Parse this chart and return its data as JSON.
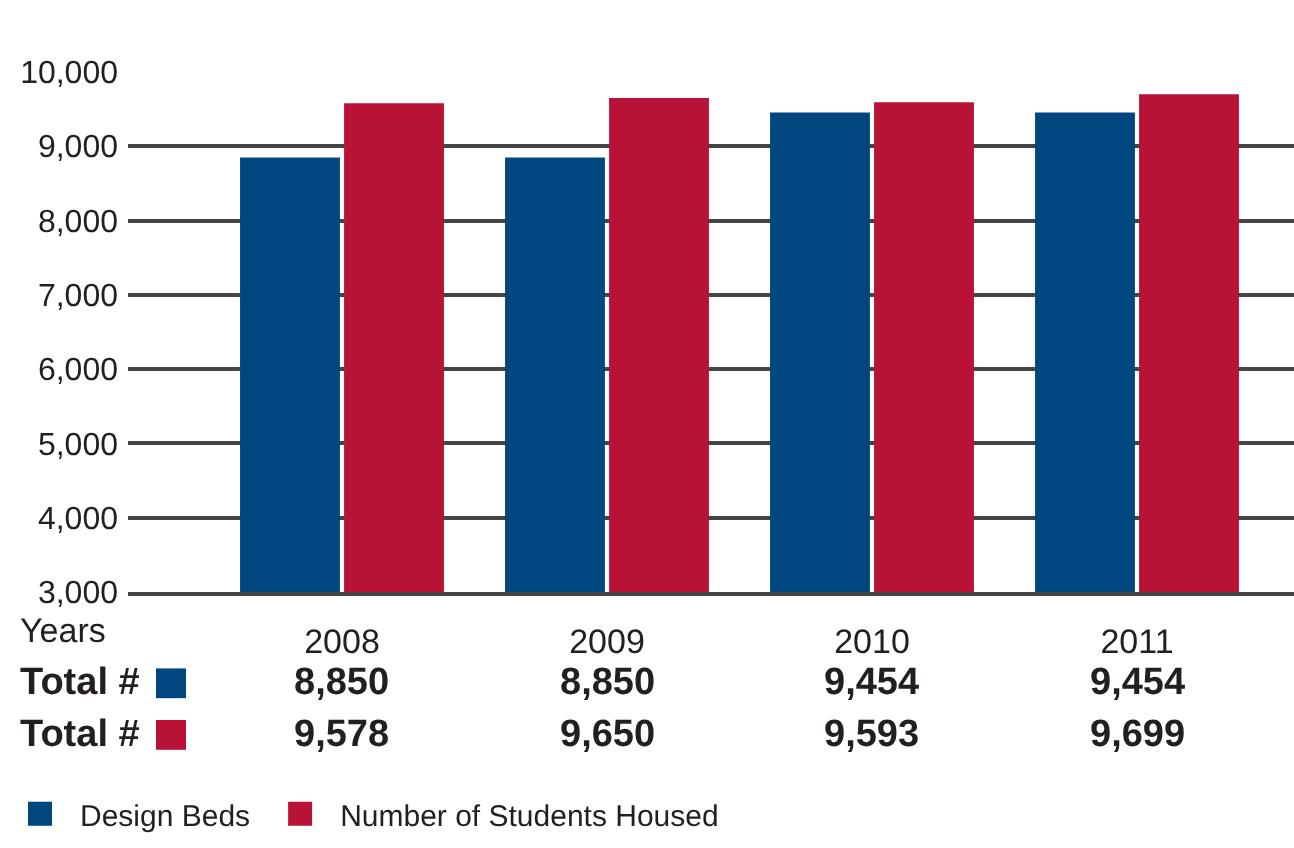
{
  "chart_data": {
    "type": "bar",
    "xlabel": "Years",
    "categories": [
      "2008",
      "2009",
      "2010",
      "2011"
    ],
    "series": [
      {
        "name": "Design Beds",
        "color": "#00467f",
        "values": [
          8850,
          8850,
          9454,
          9454
        ],
        "value_labels": [
          "8,850",
          "8,850",
          "9,454",
          "9,454"
        ]
      },
      {
        "name": "Number of Students Housed",
        "color": "#b91237",
        "values": [
          9578,
          9650,
          9593,
          9699
        ],
        "value_labels": [
          "9,578",
          "9,650",
          "9,593",
          "9,699"
        ]
      }
    ],
    "ylim": [
      3000,
      10000
    ],
    "yticks": [
      {
        "value": 3000,
        "label": "3,000"
      },
      {
        "value": 4000,
        "label": "4,000"
      },
      {
        "value": 5000,
        "label": "5,000"
      },
      {
        "value": 6000,
        "label": "6,000"
      },
      {
        "value": 7000,
        "label": "7,000"
      },
      {
        "value": 8000,
        "label": "8,000"
      },
      {
        "value": 9000,
        "label": "9,000"
      },
      {
        "value": 10000,
        "label": "10,000"
      }
    ],
    "grid": "y",
    "legend": "bottom left",
    "annotations": [
      "Total #",
      "Total #"
    ]
  }
}
